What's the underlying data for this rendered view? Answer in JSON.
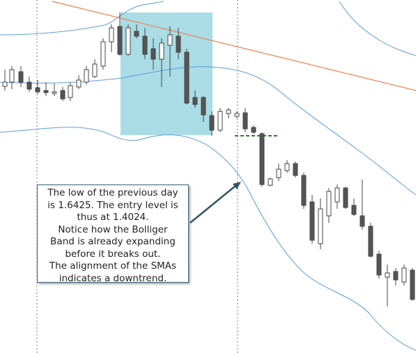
{
  "annotation": {
    "lines": [
      "The low of the previous day",
      "is 1.6425. The entry level is",
      "thus at 1.4024.",
      "Notice how the Bolliger",
      "Band is already expanding",
      "before it breaks out.",
      "The alignment of the SMAs",
      "indicates a downtrend."
    ]
  }
}
